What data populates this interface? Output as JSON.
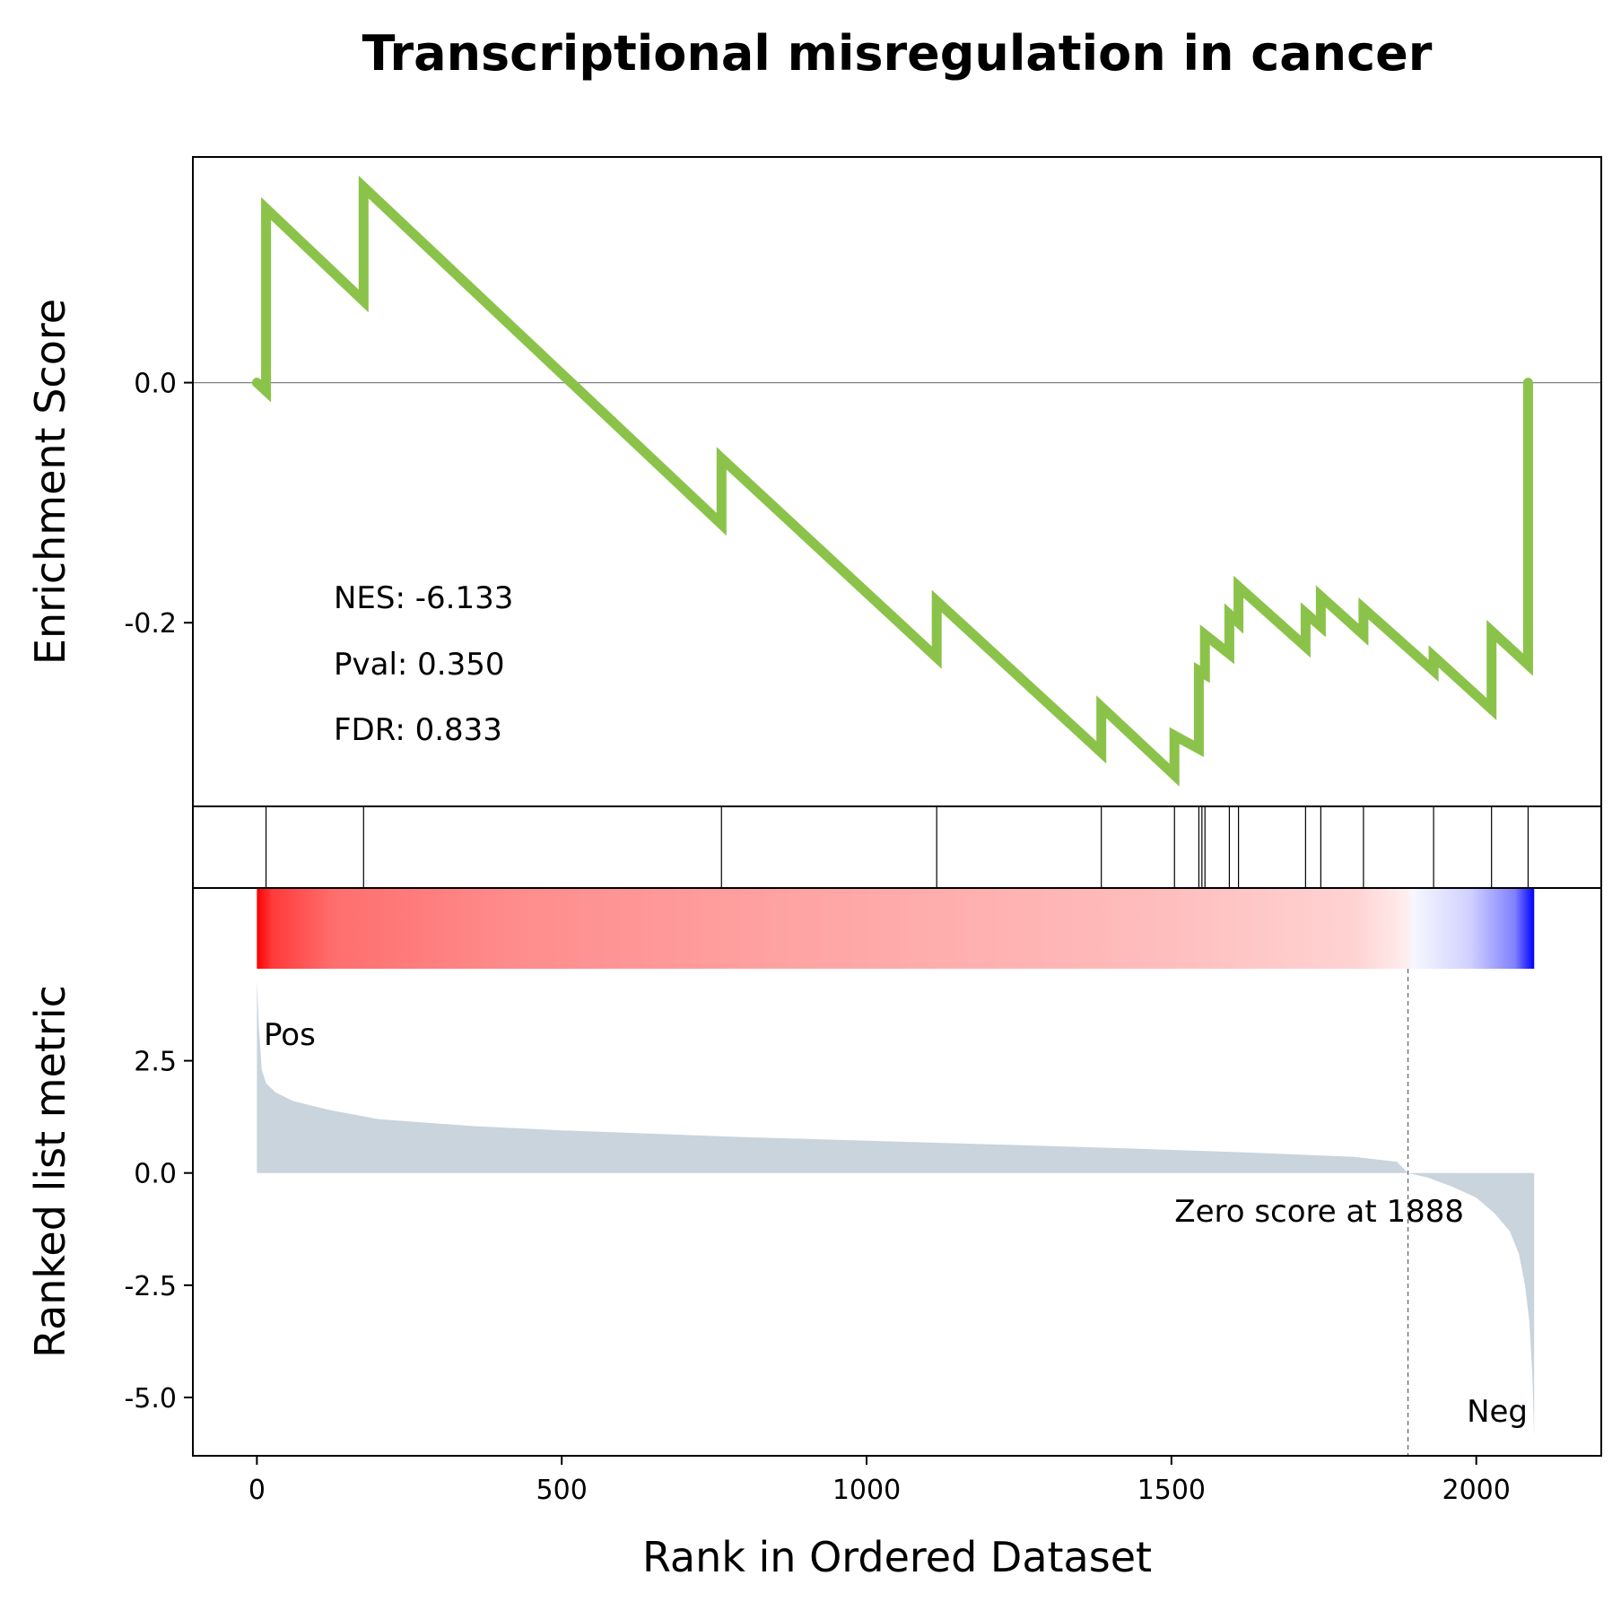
{
  "chart_data": {
    "type": "line",
    "title": "Transcriptional misregulation in cancer",
    "xlabel": "Rank in Ordered Dataset",
    "xlim": [
      -105,
      2205
    ],
    "xticks": [
      0,
      500,
      1000,
      1500,
      2000
    ],
    "enrichment": {
      "ylabel": "Enrichment Score",
      "ylim": [
        -0.353,
        0.188
      ],
      "yticks": [
        0.0,
        -0.2
      ],
      "ytick_labels": [
        "0.0",
        "-0.2"
      ],
      "line_color": "#8bc34a",
      "points": [
        {
          "x": 0,
          "y": 0.0
        },
        {
          "x": 15,
          "y": -0.007
        },
        {
          "x": 15,
          "y": 0.145
        },
        {
          "x": 175,
          "y": 0.068
        },
        {
          "x": 175,
          "y": 0.163
        },
        {
          "x": 762,
          "y": -0.118
        },
        {
          "x": 762,
          "y": -0.063
        },
        {
          "x": 1115,
          "y": -0.229
        },
        {
          "x": 1115,
          "y": -0.182
        },
        {
          "x": 1385,
          "y": -0.308
        },
        {
          "x": 1385,
          "y": -0.27
        },
        {
          "x": 1505,
          "y": -0.327
        },
        {
          "x": 1505,
          "y": -0.294
        },
        {
          "x": 1545,
          "y": -0.305
        },
        {
          "x": 1545,
          "y": -0.24
        },
        {
          "x": 1555,
          "y": -0.243
        },
        {
          "x": 1555,
          "y": -0.21
        },
        {
          "x": 1595,
          "y": -0.226
        },
        {
          "x": 1595,
          "y": -0.193
        },
        {
          "x": 1610,
          "y": -0.2
        },
        {
          "x": 1610,
          "y": -0.17
        },
        {
          "x": 1720,
          "y": -0.22
        },
        {
          "x": 1720,
          "y": -0.192
        },
        {
          "x": 1745,
          "y": -0.203
        },
        {
          "x": 1745,
          "y": -0.178
        },
        {
          "x": 1815,
          "y": -0.21
        },
        {
          "x": 1815,
          "y": -0.188
        },
        {
          "x": 1930,
          "y": -0.24
        },
        {
          "x": 1930,
          "y": -0.228
        },
        {
          "x": 2025,
          "y": -0.272
        },
        {
          "x": 2025,
          "y": -0.207
        },
        {
          "x": 2085,
          "y": -0.235
        },
        {
          "x": 2085,
          "y": 0.0
        }
      ],
      "stats": [
        "NES: -6.133",
        "Pval: 0.350",
        "FDR: 0.833"
      ]
    },
    "hits": {
      "ranks": [
        15,
        175,
        762,
        1115,
        1385,
        1505,
        1545,
        1550,
        1555,
        1595,
        1610,
        1720,
        1745,
        1815,
        1930,
        2025,
        2085
      ]
    },
    "ranked_metric": {
      "ylabel": "Ranked list metric",
      "ylim": [
        -6.3,
        4.55
      ],
      "yticks": [
        2.5,
        0.0,
        -2.5,
        -5.0
      ],
      "ytick_labels": [
        "2.5",
        "0.0",
        "-2.5",
        "-5.0"
      ],
      "fill_color": "#c9d4dd",
      "n_genes": 2096,
      "zero_crossing": 1888,
      "zero_label": "Zero score at 1888",
      "pos_label": "Pos",
      "neg_label": "Neg",
      "pos_color": "#ff0000",
      "neg_color": "#0000ff",
      "curve": [
        {
          "x": 0,
          "y": 4.3
        },
        {
          "x": 3,
          "y": 3.3
        },
        {
          "x": 8,
          "y": 2.3
        },
        {
          "x": 15,
          "y": 2.0
        },
        {
          "x": 30,
          "y": 1.8
        },
        {
          "x": 60,
          "y": 1.6
        },
        {
          "x": 120,
          "y": 1.4
        },
        {
          "x": 200,
          "y": 1.2
        },
        {
          "x": 350,
          "y": 1.05
        },
        {
          "x": 500,
          "y": 0.95
        },
        {
          "x": 800,
          "y": 0.8
        },
        {
          "x": 1100,
          "y": 0.68
        },
        {
          "x": 1400,
          "y": 0.56
        },
        {
          "x": 1600,
          "y": 0.47
        },
        {
          "x": 1800,
          "y": 0.36
        },
        {
          "x": 1870,
          "y": 0.25
        },
        {
          "x": 1888,
          "y": 0.0
        },
        {
          "x": 1920,
          "y": -0.1
        },
        {
          "x": 1960,
          "y": -0.3
        },
        {
          "x": 2000,
          "y": -0.55
        },
        {
          "x": 2030,
          "y": -0.9
        },
        {
          "x": 2055,
          "y": -1.3
        },
        {
          "x": 2070,
          "y": -1.8
        },
        {
          "x": 2080,
          "y": -2.5
        },
        {
          "x": 2087,
          "y": -3.3
        },
        {
          "x": 2092,
          "y": -4.5
        },
        {
          "x": 2095,
          "y": -5.9
        }
      ]
    }
  }
}
